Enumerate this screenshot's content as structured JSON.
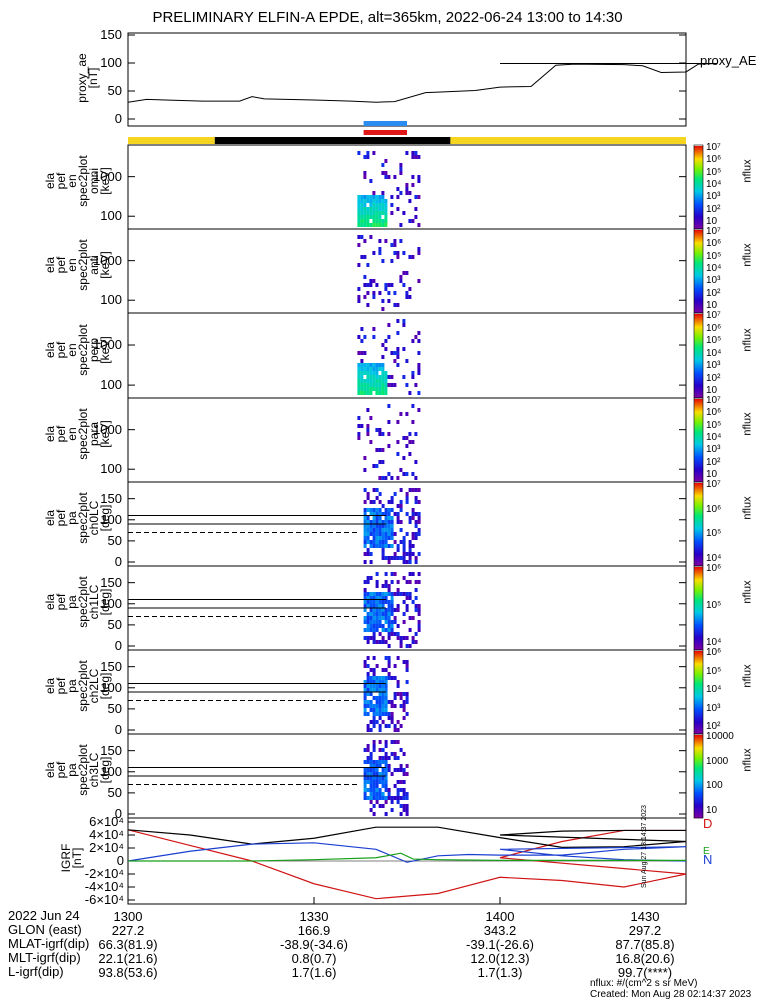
{
  "title": "PRELIMINARY ELFIN-A EPDE, alt=365km, 2022-06-24 13:00 to 14:30",
  "colors": {
    "orbit_bar_sun": "#f5d51f",
    "orbit_bar_shadow": "#000000",
    "marker_blue": "#2a8cf0",
    "marker_red": "#e01818",
    "igrf_black": "#000000",
    "igrf_blue": "#1a3fd0",
    "igrf_red": "#d01515",
    "igrf_green": "#18a018"
  },
  "panels": [
    {
      "id": "proxy_ae",
      "ylabel": "proxy_ae\n[nT]",
      "legend": "proxy_AE",
      "yticks": [
        "0",
        "50",
        "100",
        "150"
      ]
    },
    {
      "id": "omni",
      "ylabel": "ela\npef\nen\nspec2plot\nomni\n[keV]",
      "yticks": [
        "100",
        "1000"
      ],
      "colorbar": [
        "10",
        "10²",
        "10³",
        "10⁴",
        "10⁵",
        "10⁶",
        "10⁷"
      ],
      "cbar_label": "nflux"
    },
    {
      "id": "anti",
      "ylabel": "ela\npef\nen\nspec2plot\nanti\n[keV]",
      "yticks": [
        "100",
        "1000"
      ],
      "colorbar": [
        "10",
        "10²",
        "10³",
        "10⁴",
        "10⁵",
        "10⁶",
        "10⁷"
      ],
      "cbar_label": "nflux"
    },
    {
      "id": "perp",
      "ylabel": "ela\npef\nen\nspec2plot\nperp\n[keV]",
      "yticks": [
        "100",
        "1000"
      ],
      "colorbar": [
        "10",
        "10²",
        "10³",
        "10⁴",
        "10⁵",
        "10⁶",
        "10⁷"
      ],
      "cbar_label": "nflux"
    },
    {
      "id": "para",
      "ylabel": "ela\npef\nen\nspec2plot\npara\n[keV]",
      "yticks": [
        "100",
        "1000"
      ],
      "colorbar": [
        "10",
        "10²",
        "10³",
        "10⁴",
        "10⁵",
        "10⁶",
        "10⁷"
      ],
      "cbar_label": "nflux"
    },
    {
      "id": "ch0LC",
      "ylabel": "ela\npef\npa\nspec2plot\nch0LC\n[deg]",
      "yticks": [
        "0",
        "50",
        "100",
        "150"
      ],
      "colorbar": [
        "10⁴",
        "10⁵",
        "10⁶",
        "10⁷"
      ],
      "cbar_label": "nflux"
    },
    {
      "id": "ch1LC",
      "ylabel": "ela\npef\npa\nspec2plot\nch1LC\n[deg]",
      "yticks": [
        "0",
        "50",
        "100",
        "150"
      ],
      "colorbar": [
        "10⁴",
        "10⁵",
        "10⁶"
      ],
      "cbar_label": "nflux"
    },
    {
      "id": "ch2LC",
      "ylabel": "ela\npef\npa\nspec2plot\nch2LC\n[deg]",
      "yticks": [
        "0",
        "50",
        "100",
        "150"
      ],
      "colorbar": [
        "10²",
        "10³",
        "10⁴",
        "10⁵",
        "10⁶"
      ],
      "cbar_label": "nflux"
    },
    {
      "id": "ch3LC",
      "ylabel": "ela\npef\npa\nspec2plot\nch3LC\n[deg]",
      "yticks": [
        "0",
        "50",
        "100",
        "150"
      ],
      "colorbar": [
        "10",
        "100",
        "1000",
        "10000"
      ],
      "cbar_label": "nflux"
    },
    {
      "id": "igrf",
      "ylabel": "IGRF\n[nT]",
      "yticks": [
        "-6×10⁴",
        "-4×10⁴",
        "-2×10⁴",
        "0",
        "2×10⁴",
        "4×10⁴",
        "6×10⁴"
      ],
      "legend_letters": [
        "D",
        "E",
        "N"
      ]
    }
  ],
  "chart_data": [
    {
      "type": "line",
      "panel": "proxy_ae",
      "series": [
        {
          "name": "proxy_AE",
          "x": [
            1300,
            1303,
            1306,
            1312,
            1318,
            1320,
            1322,
            1330,
            1336,
            1340,
            1343,
            1348,
            1350,
            1356,
            1360,
            1365,
            1369,
            1372,
            1380,
            1383,
            1386,
            1390,
            1392,
            1395,
            1400,
            1430
          ],
          "values": [
            30,
            35,
            34,
            32,
            32,
            40,
            36,
            34,
            32,
            30,
            31,
            47,
            48,
            51,
            57,
            58,
            96,
            98,
            97,
            95,
            83,
            84,
            98,
            99,
            99,
            99
          ]
        }
      ],
      "ylim": [
        0,
        150
      ],
      "xlim": [
        1300,
        1430
      ]
    },
    {
      "type": "heatmap",
      "panel": "omni",
      "ylim_log": [
        60,
        5000
      ],
      "x_range_active": [
        1337,
        1347
      ]
    },
    {
      "type": "heatmap",
      "panel": "anti",
      "ylim_log": [
        60,
        5000
      ],
      "x_range_active": [
        1337,
        1347
      ]
    },
    {
      "type": "heatmap",
      "panel": "perp",
      "ylim_log": [
        60,
        5000
      ],
      "x_range_active": [
        1337,
        1347
      ]
    },
    {
      "type": "heatmap",
      "panel": "para",
      "ylim_log": [
        60,
        5000
      ],
      "x_range_active": [
        1337,
        1347
      ]
    },
    {
      "type": "heatmap",
      "panel": "ch0LC",
      "ylim": [
        0,
        180
      ],
      "x_range_active": [
        1338,
        1347
      ],
      "ref_lines": [
        110,
        90
      ],
      "dashed_line": 70
    },
    {
      "type": "heatmap",
      "panel": "ch1LC",
      "ylim": [
        0,
        180
      ],
      "x_range_active": [
        1338,
        1347
      ],
      "ref_lines": [
        110,
        90
      ],
      "dashed_line": 70
    },
    {
      "type": "heatmap",
      "panel": "ch2LC",
      "ylim": [
        0,
        180
      ],
      "x_range_active": [
        1338,
        1345
      ],
      "ref_lines": [
        110,
        90
      ],
      "dashed_line": 70
    },
    {
      "type": "heatmap",
      "panel": "ch3LC",
      "ylim": [
        0,
        180
      ],
      "x_range_active": [
        1338,
        1345
      ],
      "ref_lines": [
        110,
        90
      ],
      "dashed_line": 70
    },
    {
      "type": "line",
      "panel": "igrf",
      "ylim": [
        -60000,
        60000
      ],
      "xlim": [
        1300,
        1430
      ],
      "series": [
        {
          "name": "D",
          "x": [
            1300,
            1310,
            1320,
            1330,
            1340,
            1350,
            1360,
            1370,
            1380,
            1390,
            1400,
            1410,
            1420,
            1430
          ],
          "values": [
            48000,
            24000,
            0,
            -35000,
            -58000,
            -50000,
            -25000,
            -30000,
            -40000,
            -20000,
            5000,
            30000,
            47000,
            47000
          ]
        },
        {
          "name": "",
          "x": [
            1300,
            1310,
            1320,
            1330,
            1340,
            1350,
            1360,
            1370,
            1380,
            1390,
            1400,
            1410,
            1420,
            1430
          ],
          "values": [
            48000,
            40000,
            26000,
            35000,
            52000,
            52000,
            36000,
            21000,
            22000,
            30000,
            40000,
            46000,
            47000,
            47000
          ]
        },
        {
          "name": "E",
          "x": [
            1300,
            1310,
            1320,
            1330,
            1340,
            1345,
            1350,
            1355,
            1360,
            1370,
            1380,
            1390,
            1400,
            1410,
            1420,
            1430
          ],
          "values": [
            0,
            15000,
            26000,
            28000,
            18000,
            -2000,
            8000,
            10000,
            9000,
            9000,
            18000,
            22000,
            18000,
            8000,
            2000,
            0
          ]
        },
        {
          "name": "N",
          "x": [
            1300,
            1320,
            1330,
            1340,
            1344,
            1346,
            1350,
            1360,
            1380,
            1400,
            1430
          ],
          "values": [
            0,
            0,
            2000,
            5000,
            12000,
            3000,
            2000,
            1000,
            1000,
            1000,
            1000
          ]
        }
      ]
    },
    {
      "type": "table",
      "panel": "orbit_bar",
      "segments": [
        {
          "from": 1300,
          "to": 1314,
          "state": "sun"
        },
        {
          "from": 1314,
          "to": 1352,
          "state": "shadow"
        },
        {
          "from": 1352,
          "to": 1430,
          "state": "sun"
        }
      ],
      "markers": [
        {
          "from": 1338,
          "to": 1345,
          "color": "blue"
        },
        {
          "from": 1338,
          "to": 1345,
          "color": "red"
        }
      ]
    }
  ],
  "xaxis": {
    "ticks": [
      "1300",
      "1330",
      "1400",
      "1430"
    ],
    "rows": [
      {
        "label": "2022 Jun 24",
        "values": [
          "1300",
          "1330",
          "1400",
          "1430"
        ]
      },
      {
        "label": "GLON (east)",
        "values": [
          "227.2",
          "166.9",
          "343.2",
          "297.2"
        ]
      },
      {
        "label": "MLAT-igrf(dip)",
        "values": [
          "66.3(81.9)",
          "-38.9(-34.6)",
          "-39.1(-26.6)",
          "87.7(85.8)"
        ]
      },
      {
        "label": "MLT-igrf(dip)",
        "values": [
          "22.1(21.6)",
          "0.8(0.7)",
          "12.0(12.3)",
          "16.8(20.6)"
        ]
      },
      {
        "label": "L-igrf(dip)",
        "values": [
          "93.8(53.6)",
          "1.7(1.6)",
          "1.7(1.3)",
          "99.7(****)"
        ]
      }
    ]
  },
  "notes": {
    "units": "nflux: #/(cm^2 s sr MeV)",
    "created": "Created: Mon Aug 28 02:14:37 2023",
    "side_stamp": "Sun Aug 27 18:14:37 2023"
  }
}
